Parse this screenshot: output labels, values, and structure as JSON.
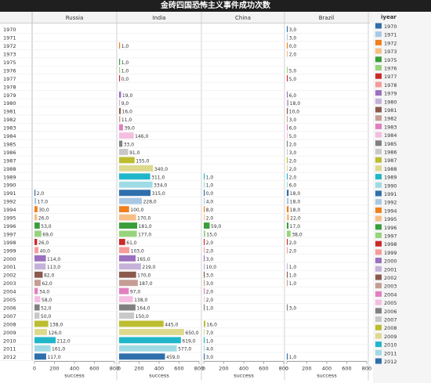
{
  "title": "金砖四国恐怖主义事件成功次数",
  "chart_data": {
    "type": "bar",
    "orientation": "horizontal",
    "row_field": "iyear",
    "panels": [
      "Russia",
      "India",
      "China",
      "Brazil"
    ],
    "xlabel": "success",
    "xlim": [
      0,
      800
    ],
    "xticks": [
      0,
      200,
      400,
      600,
      800
    ],
    "grid": false,
    "legend_title": "iyear",
    "legend_position": "right",
    "categories": [
      "1970",
      "1971",
      "1972",
      "1973",
      "1975",
      "1976",
      "1977",
      "1978",
      "1979",
      "1980",
      "1981",
      "1982",
      "1983",
      "1984",
      "1985",
      "1986",
      "1987",
      "1988",
      "1989",
      "1990",
      "1991",
      "1992",
      "1994",
      "1995",
      "1996",
      "1997",
      "1998",
      "1999",
      "2000",
      "2001",
      "2002",
      "2003",
      "2004",
      "2005",
      "2006",
      "2007",
      "2008",
      "2009",
      "2010",
      "2011",
      "2012"
    ],
    "colors": [
      "#2f6fab",
      "#a9c8e4",
      "#f07f1e",
      "#f7be84",
      "#3a9e3a",
      "#98d37d",
      "#cc2a2a",
      "#f69b9b",
      "#9a70bf",
      "#c6b2d8",
      "#8b5a4d",
      "#c59d95",
      "#e27fc0",
      "#f5bde0",
      "#808080",
      "#c8c8c8",
      "#bcbd2f",
      "#ddd98d",
      "#20b6c9",
      "#9edbe4",
      "#2f6fab",
      "#a9c8e4",
      "#f07f1e",
      "#f7be84",
      "#3a9e3a",
      "#98d37d",
      "#cc2a2a",
      "#f69b9b",
      "#9a70bf",
      "#c6b2d8",
      "#8b5a4d",
      "#c59d95",
      "#e27fc0",
      "#f5bde0",
      "#808080",
      "#c8c8c8",
      "#bcbd2f",
      "#ddd98d",
      "#20b6c9",
      "#9edbe4",
      "#2f6fab"
    ],
    "series": [
      {
        "name": "Russia",
        "values": [
          null,
          null,
          null,
          null,
          null,
          null,
          null,
          null,
          null,
          null,
          null,
          null,
          null,
          null,
          null,
          null,
          null,
          null,
          null,
          null,
          2,
          17,
          30,
          26,
          53,
          69,
          26,
          40,
          114,
          113,
          82,
          62,
          34,
          58,
          52,
          50,
          138,
          126,
          212,
          161,
          117
        ]
      },
      {
        "name": "India",
        "values": [
          null,
          null,
          1,
          null,
          1,
          1,
          0,
          null,
          19,
          9,
          16,
          11,
          39,
          146,
          33,
          91,
          155,
          340,
          311,
          334,
          315,
          228,
          100,
          170,
          181,
          177,
          61,
          103,
          165,
          219,
          170,
          187,
          97,
          138,
          164,
          150,
          445,
          650,
          619,
          577,
          459
        ]
      },
      {
        "name": "China",
        "values": [
          null,
          null,
          null,
          null,
          null,
          null,
          null,
          null,
          null,
          null,
          null,
          null,
          null,
          null,
          null,
          null,
          null,
          null,
          1,
          1,
          0,
          4,
          8,
          2,
          59,
          15,
          2,
          2,
          3,
          10,
          3,
          3,
          2,
          2,
          1,
          null,
          16,
          7,
          1,
          4,
          3
        ]
      },
      {
        "name": "Brazil",
        "values": [
          3,
          3,
          0,
          2,
          null,
          5,
          5,
          null,
          6,
          18,
          10,
          3,
          6,
          5,
          2,
          3,
          2,
          2,
          2,
          6,
          18,
          18,
          18,
          22,
          17,
          38,
          2,
          2,
          null,
          1,
          1,
          1,
          null,
          null,
          3,
          null,
          null,
          null,
          null,
          null,
          1
        ]
      }
    ]
  }
}
